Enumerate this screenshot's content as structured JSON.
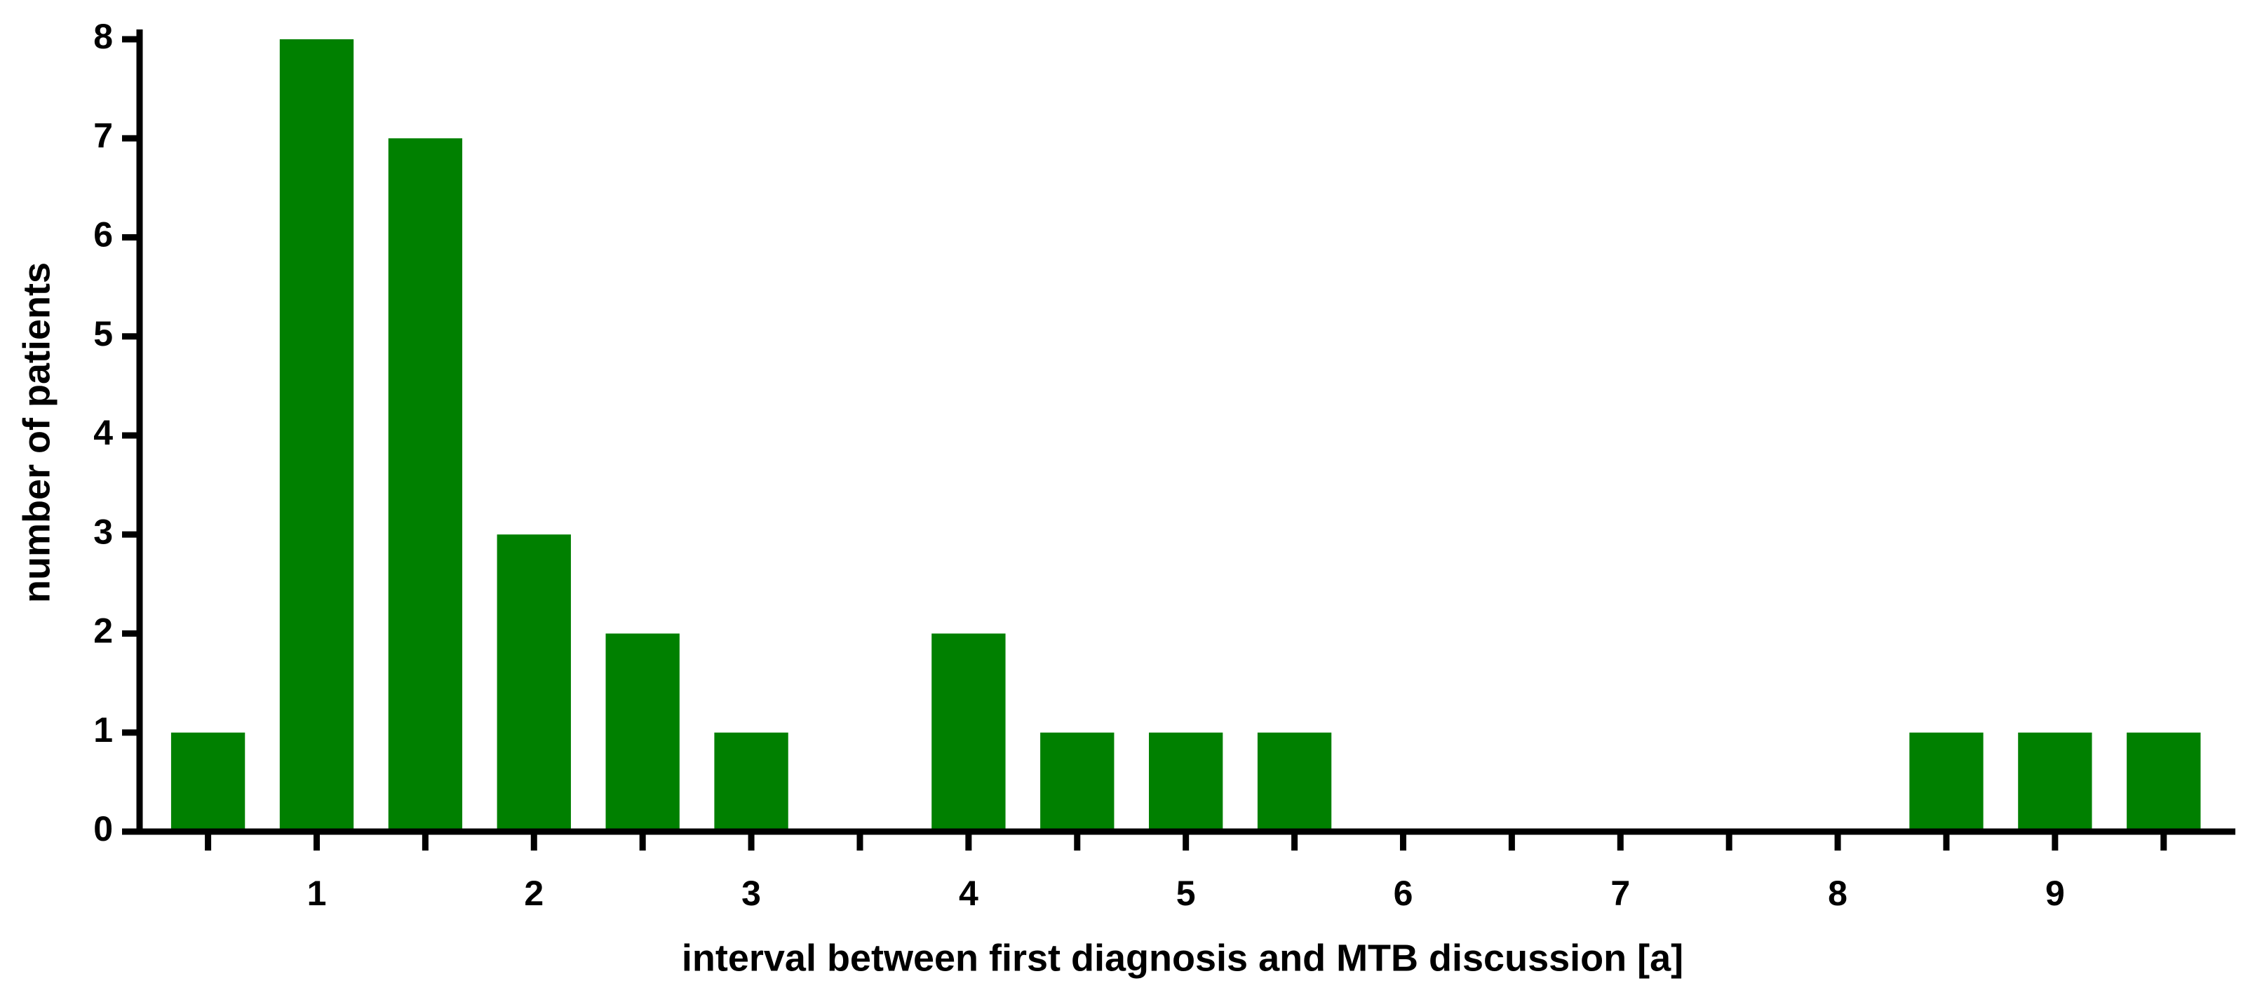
{
  "chart_data": {
    "type": "bar",
    "x_label": "interval between first diagnosis and MTB discussion [a]",
    "y_label": "number of patients",
    "x": [
      0.5,
      1,
      1.5,
      2,
      2.5,
      3,
      3.5,
      4,
      4.5,
      5,
      5.5,
      6,
      6.5,
      7,
      7.5,
      8,
      8.5,
      9,
      9.5
    ],
    "values": [
      1,
      8,
      7,
      3,
      2,
      1,
      0,
      2,
      1,
      1,
      1,
      0,
      0,
      0,
      0,
      0,
      1,
      1,
      1
    ],
    "color": "#008000",
    "xlim": [
      0.185,
      9.83
    ],
    "xticks": [
      1,
      2,
      3,
      4,
      5,
      6,
      7,
      8,
      9
    ],
    "xminorticks": [
      0.5,
      1.5,
      2.5,
      3.5,
      4.5,
      5.5,
      6.5,
      7.5,
      8.5,
      9.5
    ],
    "ylim": [
      0,
      8
    ],
    "yticks": [
      0,
      1,
      2,
      3,
      4,
      5,
      6,
      7,
      8
    ],
    "grid": false
  }
}
